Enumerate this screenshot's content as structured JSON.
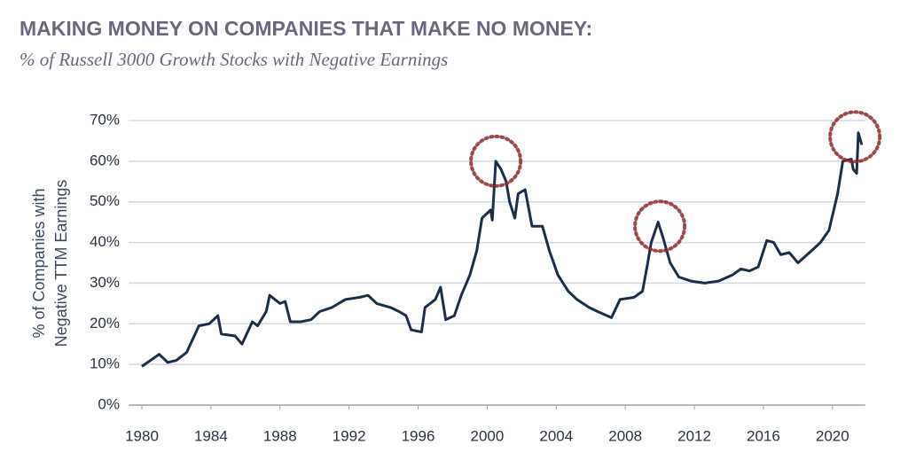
{
  "chart_data": {
    "type": "line",
    "title": "MAKING MONEY ON COMPANIES THAT MAKE NO MONEY:",
    "subtitle": "% of Russell 3000 Growth Stocks with Negative Earnings",
    "ylabel": [
      "% of Companies with",
      "Negative TTM Earnings"
    ],
    "x": [
      1980.0,
      1981.0,
      1981.5,
      1982.0,
      1982.6,
      1983.3,
      1983.9,
      1984.4,
      1984.6,
      1985.4,
      1985.8,
      1986.4,
      1986.7,
      1987.2,
      1987.4,
      1988.0,
      1988.3,
      1988.6,
      1989.2,
      1989.8,
      1990.3,
      1991.0,
      1991.8,
      1992.6,
      1993.1,
      1993.6,
      1994.4,
      1994.9,
      1995.3,
      1995.6,
      1996.2,
      1996.4,
      1997.0,
      1997.3,
      1997.6,
      1998.1,
      1998.5,
      1999.0,
      1999.4,
      1999.7,
      2000.2,
      2000.3,
      2000.5,
      2000.8,
      2001.1,
      2001.3,
      2001.6,
      2001.8,
      2002.2,
      2002.6,
      2003.2,
      2003.6,
      2004.1,
      2004.7,
      2005.2,
      2005.9,
      2006.4,
      2007.2,
      2007.7,
      2008.5,
      2009.0,
      2009.3,
      2009.5,
      2009.9,
      2010.2,
      2010.6,
      2011.1,
      2011.8,
      2012.6,
      2013.4,
      2014.2,
      2014.7,
      2015.2,
      2015.7,
      2016.2,
      2016.6,
      2017.0,
      2017.5,
      2018.0,
      2018.8,
      2019.3,
      2019.8,
      2020.3,
      2020.6,
      2021.1,
      2021.2,
      2021.4,
      2021.5,
      2021.7
    ],
    "series": [
      {
        "color": "#1c2f48",
        "values": [
          9.5,
          12.5,
          10.5,
          11,
          13,
          19.5,
          20,
          22,
          17.5,
          17,
          15,
          20.5,
          19.5,
          23,
          27,
          25,
          25.5,
          20.5,
          20.5,
          21,
          23,
          24,
          26,
          26.5,
          27,
          25,
          24,
          23,
          22,
          18.5,
          18,
          24,
          26,
          29,
          21,
          22,
          27,
          32,
          38,
          46,
          48,
          45.5,
          60,
          58,
          55,
          50,
          46,
          52,
          53,
          44,
          44,
          38,
          32,
          28,
          26,
          24,
          23,
          21.5,
          26,
          26.5,
          28,
          35,
          40,
          45,
          41,
          35,
          31.5,
          30.5,
          30,
          30.5,
          32,
          33.5,
          33,
          34,
          40.5,
          40,
          37,
          37.5,
          35,
          38,
          40,
          43,
          52,
          60,
          60.5,
          58,
          57,
          67,
          64
        ]
      }
    ],
    "xlim": [
      1980,
      2021.9
    ],
    "xticks": [
      1980,
      1984,
      1988,
      1992,
      1996,
      2000,
      2004,
      2008,
      2012,
      2016,
      2020
    ],
    "ylim": [
      0,
      70
    ],
    "yticks": [
      {
        "value": 0,
        "label": "0%"
      },
      {
        "value": 10,
        "label": "10%"
      },
      {
        "value": 20,
        "label": "20%"
      },
      {
        "value": 30,
        "label": "30%"
      },
      {
        "value": 40,
        "label": "40%"
      },
      {
        "value": 50,
        "label": "50%"
      },
      {
        "value": 60,
        "label": "60%"
      },
      {
        "value": 70,
        "label": "70%"
      }
    ],
    "grid": true,
    "highlights": [
      {
        "x": 2000.5,
        "y": 60
      },
      {
        "x": 2010.0,
        "y": 44
      },
      {
        "x": 2021.3,
        "y": 66
      }
    ],
    "highlight_color": "#8b2b2b"
  }
}
